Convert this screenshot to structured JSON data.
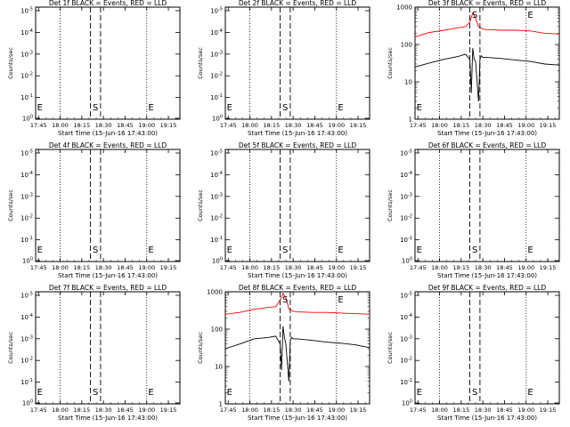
{
  "figure": {
    "xlabel": "Start Time (15-Jun-16 17:43:00)",
    "ylabel": "Counts/sec",
    "xticks": [
      "17:45",
      "18:00",
      "18:15",
      "18:30",
      "18:45",
      "19:00",
      "19:15"
    ],
    "xtick_minutes": [
      2,
      17,
      32,
      47,
      62,
      77,
      92
    ],
    "xlim": [
      0,
      100
    ],
    "dotted_lines_min": [
      17,
      77
    ],
    "dashed_lines_min": [
      38,
      45
    ],
    "markers": [
      {
        "label": "S",
        "x": 41.5
      },
      {
        "label": "E",
        "x": 80
      }
    ],
    "left_marker": {
      "label": "E",
      "x": 1
    }
  },
  "chart_data": [
    {
      "type": "line",
      "title": "Det 1f BLACK = Events, RED = LLD",
      "scale": "placeholder",
      "yticks": [
        "10<sup>0</sup>",
        "10<sup>-1</sup>",
        "10<sup>-2</sup>",
        "10<sup>-3</sup>",
        "10<sup>-4</sup>",
        "10<sup>-5</sup>"
      ],
      "series": []
    },
    {
      "type": "line",
      "title": "Det 2f BLACK = Events, RED = LLD",
      "scale": "placeholder",
      "yticks": [
        "10<sup>0</sup>",
        "10<sup>-1</sup>",
        "10<sup>-2</sup>",
        "10<sup>-3</sup>",
        "10<sup>-4</sup>",
        "10<sup>-5</sup>"
      ],
      "series": []
    },
    {
      "type": "line",
      "title": "Det 3f BLACK = Events, RED = LLD",
      "scale": "log",
      "ylim": [
        1,
        1000
      ],
      "yticks": [
        "1",
        "10",
        "100",
        "1000"
      ],
      "yticks_values": [
        1,
        10,
        100,
        1000
      ],
      "series": [
        {
          "color": "#ff0000",
          "x": [
            0,
            10,
            20,
            30,
            35,
            38,
            40,
            42,
            44,
            47,
            50,
            60,
            70,
            80,
            90,
            100
          ],
          "y": [
            160,
            210,
            240,
            280,
            300,
            400,
            700,
            500,
            300,
            260,
            250,
            240,
            240,
            230,
            200,
            190
          ]
        },
        {
          "color": "#000000",
          "x": [
            0,
            10,
            20,
            30,
            35,
            38,
            39,
            40,
            41,
            42,
            44,
            45,
            46,
            47,
            50,
            60,
            70,
            80,
            90,
            100
          ],
          "y": [
            25,
            32,
            40,
            48,
            55,
            40,
            5,
            80,
            40,
            35,
            3,
            40,
            50,
            45,
            45,
            42,
            38,
            35,
            30,
            28
          ]
        }
      ]
    },
    {
      "type": "line",
      "title": "Det 4f BLACK = Events, RED = LLD",
      "scale": "placeholder",
      "yticks": [
        "10<sup>0</sup>",
        "10<sup>-1</sup>",
        "10<sup>-2</sup>",
        "10<sup>-3</sup>",
        "10<sup>-4</sup>",
        "10<sup>-5</sup>"
      ],
      "series": []
    },
    {
      "type": "line",
      "title": "Det 5f BLACK = Events, RED = LLD",
      "scale": "placeholder",
      "yticks": [
        "10<sup>0</sup>",
        "10<sup>-1</sup>",
        "10<sup>-2</sup>",
        "10<sup>-3</sup>",
        "10<sup>-4</sup>",
        "10<sup>-5</sup>"
      ],
      "series": []
    },
    {
      "type": "line",
      "title": "Det 6f BLACK = Events, RED = LLD",
      "scale": "placeholder",
      "yticks": [
        "10<sup>0</sup>",
        "10<sup>-1</sup>",
        "10<sup>-2</sup>",
        "10<sup>-3</sup>",
        "10<sup>-4</sup>",
        "10<sup>-5</sup>"
      ],
      "series": []
    },
    {
      "type": "line",
      "title": "Det 7f BLACK = Events, RED = LLD",
      "scale": "placeholder",
      "yticks": [
        "10<sup>0</sup>",
        "10<sup>-1</sup>",
        "10<sup>-2</sup>",
        "10<sup>-3</sup>",
        "10<sup>-4</sup>",
        "10<sup>-5</sup>"
      ],
      "series": []
    },
    {
      "type": "line",
      "title": "Det 8f BLACK = Events, RED = LLD",
      "scale": "log",
      "ylim": [
        1,
        1000
      ],
      "yticks": [
        "1",
        "10",
        "100",
        "1000"
      ],
      "yticks_values": [
        1,
        10,
        100,
        1000
      ],
      "series": [
        {
          "color": "#ff0000",
          "x": [
            0,
            10,
            20,
            30,
            35,
            38,
            40,
            42,
            44,
            47,
            50,
            60,
            70,
            80,
            90,
            100
          ],
          "y": [
            250,
            280,
            340,
            380,
            400,
            600,
            900,
            700,
            350,
            300,
            290,
            280,
            280,
            270,
            260,
            250
          ]
        },
        {
          "color": "#000000",
          "x": [
            0,
            10,
            20,
            30,
            35,
            38,
            39,
            40,
            41,
            42,
            44,
            45,
            46,
            47,
            50,
            60,
            70,
            80,
            90,
            100
          ],
          "y": [
            30,
            40,
            55,
            60,
            65,
            40,
            8,
            120,
            60,
            40,
            4,
            50,
            60,
            55,
            55,
            50,
            45,
            42,
            38,
            32
          ]
        }
      ]
    },
    {
      "type": "line",
      "title": "Det 9f BLACK = Events, RED = LLD",
      "scale": "placeholder",
      "yticks": [
        "10<sup>0</sup>",
        "10<sup>-1</sup>",
        "10<sup>-2</sup>",
        "10<sup>-3</sup>",
        "10<sup>-4</sup>",
        "10<sup>-5</sup>"
      ],
      "series": []
    }
  ]
}
